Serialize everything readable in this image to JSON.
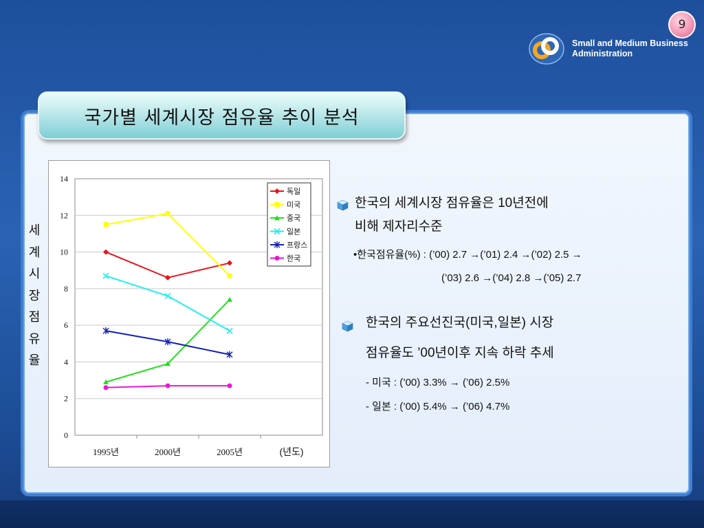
{
  "slide": {
    "page_number": "9",
    "title": "국가별 세계시장 점유율 추이 분석",
    "org_line1": "Small and Medium Business",
    "org_line2": "Administration"
  },
  "y_label_vertical": [
    "세",
    "계",
    "시",
    "장",
    "점",
    "유",
    "율"
  ],
  "chart_data": {
    "type": "line",
    "categories": [
      "1995년",
      "2000년",
      "2005년"
    ],
    "x_unit_label": "(년도)",
    "ylim": [
      0,
      14
    ],
    "yticks": [
      0,
      2,
      4,
      6,
      8,
      10,
      12,
      14
    ],
    "grid": true,
    "legend_position": "top-right",
    "series": [
      {
        "name": "독일",
        "color": "#e8121a",
        "marker": "diamond",
        "values": [
          10.0,
          8.6,
          9.4
        ]
      },
      {
        "name": "미국",
        "color": "#ffff00",
        "marker": "square",
        "values": [
          11.5,
          12.1,
          8.7
        ]
      },
      {
        "name": "중국",
        "color": "#22e01c",
        "marker": "triangle",
        "values": [
          2.9,
          3.9,
          7.4
        ]
      },
      {
        "name": "일본",
        "color": "#1ef0f0",
        "marker": "x",
        "values": [
          8.7,
          7.6,
          5.7
        ]
      },
      {
        "name": "프랑스",
        "color": "#1220b8",
        "marker": "star",
        "values": [
          5.7,
          5.1,
          4.4
        ]
      },
      {
        "name": "한국",
        "color": "#ee14d8",
        "marker": "circle",
        "values": [
          2.6,
          2.7,
          2.7
        ]
      }
    ]
  },
  "bullets": [
    {
      "lines": [
        "한국의 세계시장 점유율은 10년전에",
        "비해 제자리수준"
      ],
      "subs": [
        "•한국점유율(%) : (’00) 2.7 →(’01) 2.4 →(’02) 2.5 →",
        "(’03) 2.6 →(’04) 2.8 →(’05) 2.7"
      ]
    },
    {
      "lines": [
        "한국의 주요선진국(미국,일본) 시장",
        "점유율도 ’00년이후 지속 하락 추세"
      ],
      "subs": [
        "- 미국 : (’00) 3.3% → (’06) 2.5%",
        "- 일본 : (’00) 5.4% → (’06) 4.7%"
      ]
    }
  ],
  "colors": {
    "background": "#2a63b3",
    "panel_border": "#3f7fd1",
    "title_box": "#7dcfd4",
    "page_badge": "#f598b8"
  }
}
